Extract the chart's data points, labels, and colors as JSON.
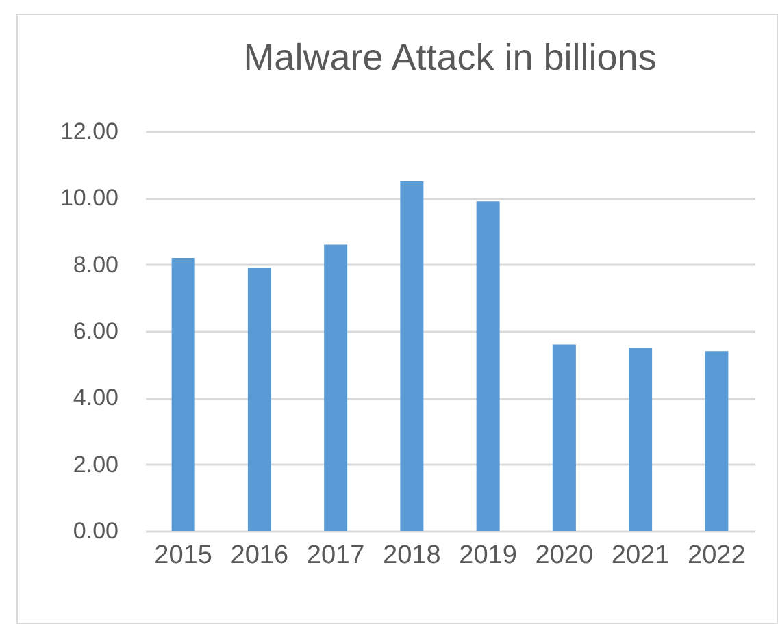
{
  "chart_data": {
    "type": "bar",
    "title": "Malware Attack in billions",
    "categories": [
      "2015",
      "2016",
      "2017",
      "2018",
      "2019",
      "2020",
      "2021",
      "2022"
    ],
    "values": [
      8.2,
      7.9,
      8.6,
      10.5,
      9.9,
      5.6,
      5.5,
      5.4
    ],
    "color": "#5b9bd5",
    "ylim": [
      0,
      12
    ],
    "yticks": [
      {
        "value": 0,
        "label": "0.00"
      },
      {
        "value": 2,
        "label": "2.00"
      },
      {
        "value": 4,
        "label": "4.00"
      },
      {
        "value": 6,
        "label": "6.00"
      },
      {
        "value": 8,
        "label": "8.00"
      },
      {
        "value": 10,
        "label": "10.00"
      },
      {
        "value": 12,
        "label": "12.00"
      }
    ],
    "grid": "y",
    "legend": false
  }
}
